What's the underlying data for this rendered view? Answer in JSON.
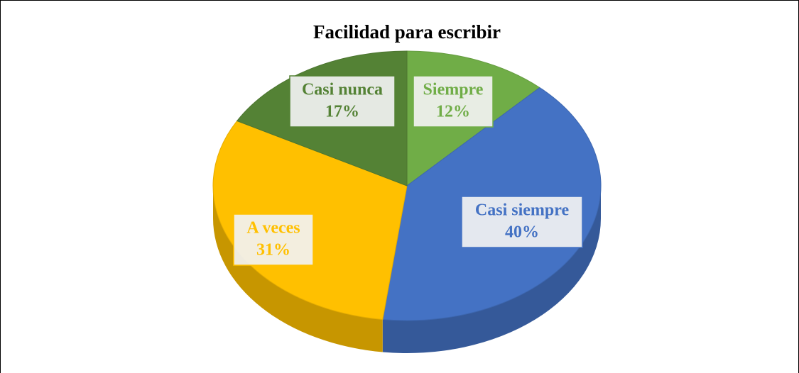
{
  "chart_data": {
    "type": "pie",
    "title": "Facilidad para escribir",
    "categories": [
      "Siempre",
      "Casi siempre",
      "A veces",
      "Casi nunca"
    ],
    "values": [
      12,
      40,
      31,
      17
    ],
    "value_labels": [
      "12%",
      "40%",
      "31%",
      "17%"
    ],
    "colors": [
      "#70ad47",
      "#4472c4",
      "#ffc000",
      "#548235"
    ]
  }
}
